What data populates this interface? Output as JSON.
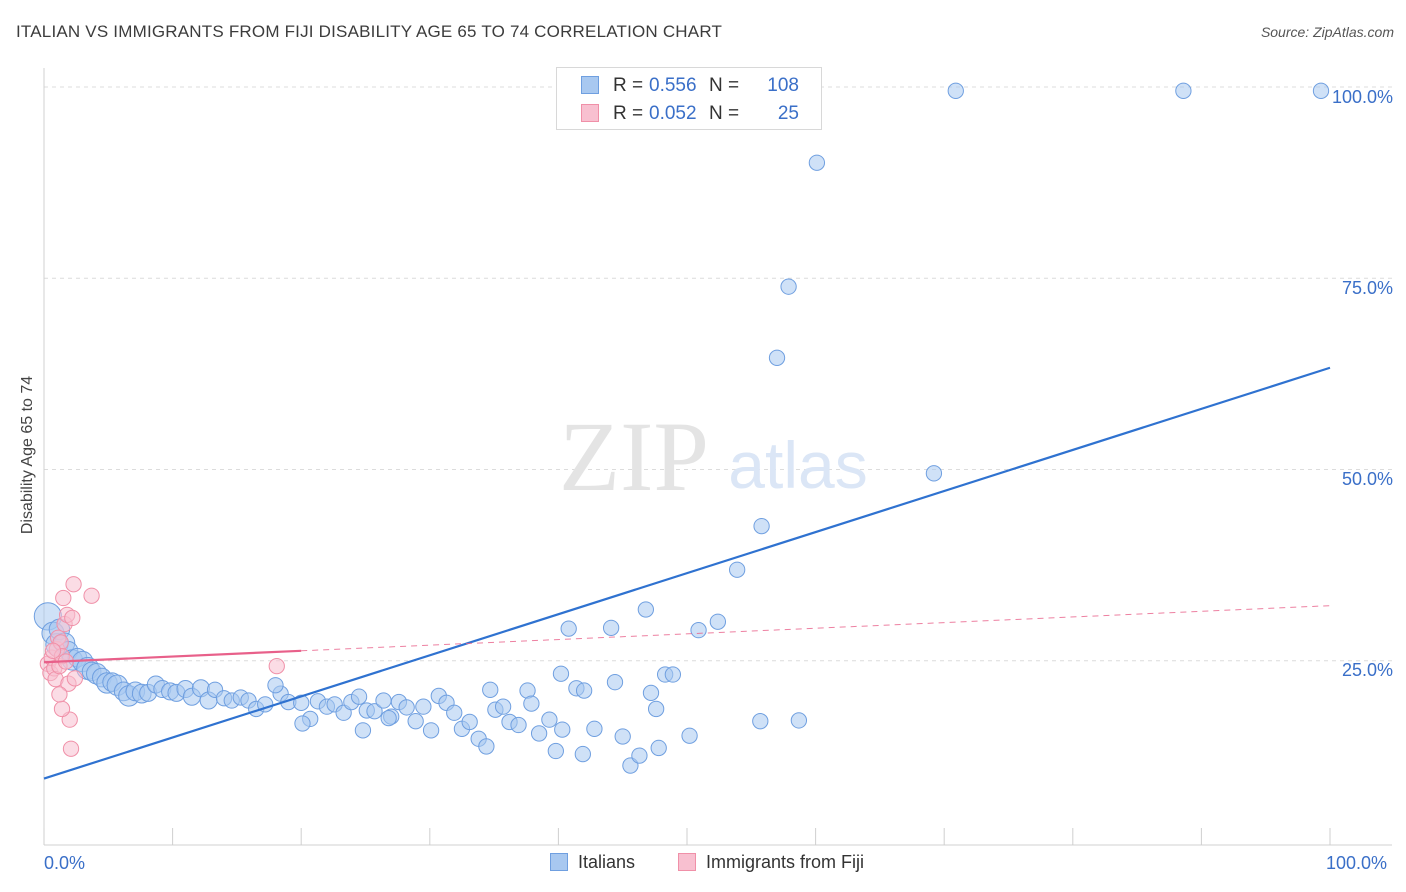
{
  "title": "ITALIAN VS IMMIGRANTS FROM FIJI DISABILITY AGE 65 TO 74 CORRELATION CHART",
  "source": "Source: ZipAtlas.com",
  "watermark": {
    "zip": "ZIP",
    "atlas": "atlas"
  },
  "legend_top": {
    "rows": [
      {
        "r_label": "R =",
        "r_value": "0.556",
        "n_label": "N =",
        "n_value": "108",
        "color": "#a8c8f0",
        "stroke": "#6f9fe0"
      },
      {
        "r_label": "R =",
        "r_value": "0.052",
        "n_label": "N =",
        "n_value": "25",
        "color": "#f8c0d0",
        "stroke": "#f090a8"
      }
    ]
  },
  "legend_bottom": [
    {
      "label": "Italians",
      "color": "#a8c8f0",
      "stroke": "#6f9fe0"
    },
    {
      "label": "Immigrants from Fiji",
      "color": "#f8c0d0",
      "stroke": "#f090a8"
    }
  ],
  "axis_labels": {
    "x_min": "0.0%",
    "x_max": "100.0%",
    "y_ticks": [
      "100.0%",
      "75.0%",
      "50.0%",
      "25.0%"
    ]
  },
  "chart_data": {
    "type": "scatter",
    "title": "ITALIAN VS IMMIGRANTS FROM FIJI DISABILITY AGE 65 TO 74 CORRELATION CHART",
    "xlabel": "",
    "ylabel": "Disability Age 65 to 74",
    "xlim": [
      0,
      100
    ],
    "ylim": [
      0,
      100
    ],
    "y_gridlines": [
      25,
      50,
      75,
      100
    ],
    "grid": true,
    "legend_position": "top-center",
    "series": [
      {
        "name": "Italians",
        "color": "#6f9fe0",
        "fill": "#a8c8f0",
        "r": 0.556,
        "n": 108,
        "trend": {
          "x": [
            0,
            100
          ],
          "y": [
            9.6,
            63.3
          ],
          "style": "solid",
          "color": "#2f72d0"
        },
        "points": [
          [
            0.3,
            30.8,
            16
          ],
          [
            0.7,
            28.6,
            13
          ],
          [
            1.0,
            27.1,
            13
          ],
          [
            1.2,
            29.1,
            12
          ],
          [
            1.6,
            27.3,
            12
          ],
          [
            1.9,
            26.3,
            11
          ],
          [
            2.2,
            25.1,
            12
          ],
          [
            2.6,
            25.4,
            11
          ],
          [
            3.0,
            24.9,
            12
          ],
          [
            3.4,
            24.0,
            13
          ],
          [
            3.7,
            23.6,
            11
          ],
          [
            4.1,
            23.3,
            12
          ],
          [
            4.5,
            22.8,
            11
          ],
          [
            4.9,
            22.1,
            12
          ],
          [
            5.3,
            22.2,
            11
          ],
          [
            5.7,
            21.8,
            12
          ],
          [
            6.2,
            21.0,
            11
          ],
          [
            6.6,
            20.4,
            12
          ],
          [
            7.1,
            21.0,
            11
          ],
          [
            7.6,
            20.7,
            11
          ],
          [
            8.1,
            20.8,
            10
          ],
          [
            8.7,
            21.9,
            10
          ],
          [
            9.2,
            21.3,
            10
          ],
          [
            9.8,
            21.0,
            10
          ],
          [
            10.3,
            20.8,
            10
          ],
          [
            11.0,
            21.3,
            10
          ],
          [
            11.5,
            20.3,
            10
          ],
          [
            12.2,
            21.4,
            10
          ],
          [
            12.8,
            19.8,
            10
          ],
          [
            13.3,
            21.2,
            9
          ],
          [
            14.0,
            20.1,
            9
          ],
          [
            14.6,
            19.8,
            9
          ],
          [
            15.3,
            20.2,
            9
          ],
          [
            15.9,
            19.8,
            9
          ],
          [
            16.5,
            18.7,
            9
          ],
          [
            17.2,
            19.3,
            9
          ],
          [
            18.4,
            20.7,
            9
          ],
          [
            18.0,
            21.8,
            9
          ],
          [
            19.0,
            19.6,
            9
          ],
          [
            20.0,
            19.5,
            9
          ],
          [
            20.7,
            17.4,
            9
          ],
          [
            21.3,
            19.7,
            9
          ],
          [
            22.0,
            19.0,
            9
          ],
          [
            22.6,
            19.3,
            9
          ],
          [
            23.3,
            18.2,
            9
          ],
          [
            23.9,
            19.6,
            9
          ],
          [
            24.5,
            20.3,
            9
          ],
          [
            25.1,
            18.5,
            9
          ],
          [
            25.7,
            18.4,
            9
          ],
          [
            26.4,
            19.8,
            9
          ],
          [
            27.0,
            17.7,
            9
          ],
          [
            27.6,
            19.6,
            9
          ],
          [
            28.2,
            18.9,
            9
          ],
          [
            28.9,
            17.1,
            9
          ],
          [
            29.5,
            19.0,
            9
          ],
          [
            30.1,
            15.9,
            9
          ],
          [
            30.7,
            20.4,
            9
          ],
          [
            31.3,
            19.5,
            9
          ],
          [
            31.9,
            18.2,
            9
          ],
          [
            32.5,
            16.1,
            9
          ],
          [
            33.1,
            17.0,
            9
          ],
          [
            33.8,
            14.8,
            9
          ],
          [
            34.4,
            13.8,
            9
          ],
          [
            34.7,
            21.2,
            9
          ],
          [
            35.1,
            18.6,
            9
          ],
          [
            35.7,
            19.0,
            9
          ],
          [
            36.2,
            17.0,
            9
          ],
          [
            36.9,
            16.6,
            9
          ],
          [
            37.6,
            21.1,
            9
          ],
          [
            37.9,
            19.4,
            9
          ],
          [
            38.5,
            15.5,
            9
          ],
          [
            39.3,
            17.3,
            9
          ],
          [
            39.8,
            13.2,
            9
          ],
          [
            40.3,
            16.0,
            9
          ],
          [
            41.4,
            21.4,
            9
          ],
          [
            41.9,
            12.8,
            9
          ],
          [
            42.8,
            16.1,
            9
          ],
          [
            44.4,
            22.2,
            9
          ],
          [
            45.0,
            15.1,
            9
          ],
          [
            45.6,
            11.3,
            9
          ],
          [
            46.3,
            12.6,
            9
          ],
          [
            47.2,
            20.8,
            9
          ],
          [
            47.6,
            18.7,
            9
          ],
          [
            48.3,
            23.2,
            9
          ],
          [
            48.9,
            23.2,
            9
          ],
          [
            42.0,
            21.1,
            9
          ],
          [
            40.2,
            23.3,
            9
          ],
          [
            44.1,
            29.3,
            9
          ],
          [
            40.8,
            29.2,
            9
          ],
          [
            50.9,
            29.0,
            9
          ],
          [
            52.4,
            30.1,
            9
          ],
          [
            53.9,
            36.9,
            9
          ],
          [
            55.8,
            42.6,
            9
          ],
          [
            57.0,
            64.6,
            9
          ],
          [
            57.9,
            73.9,
            9
          ],
          [
            60.1,
            90.1,
            9
          ],
          [
            55.7,
            17.1,
            9
          ],
          [
            58.7,
            17.2,
            9
          ],
          [
            69.2,
            49.5,
            9
          ],
          [
            70.9,
            99.5,
            9
          ],
          [
            88.6,
            99.5,
            9
          ],
          [
            99.3,
            99.5,
            9
          ],
          [
            46.8,
            31.7,
            9
          ],
          [
            47.8,
            13.6,
            9
          ],
          [
            24.8,
            15.9,
            9
          ],
          [
            50.2,
            15.2,
            9
          ],
          [
            20.1,
            16.8,
            9
          ],
          [
            26.8,
            17.5,
            9
          ]
        ]
      },
      {
        "name": "Immigrants from Fiji",
        "color": "#f090a8",
        "fill": "#f8c0d0",
        "r": 0.052,
        "n": 25,
        "trend": {
          "x": [
            0,
            20
          ],
          "y": [
            24.8,
            26.3
          ],
          "style": "solid",
          "color": "#e8608a"
        },
        "trend_extension": {
          "x": [
            20,
            100
          ],
          "y": [
            26.3,
            32.2
          ],
          "style": "dashed",
          "color": "#e8608a"
        },
        "points": [
          [
            0.3,
            24.6,
            9
          ],
          [
            0.5,
            23.4,
            9
          ],
          [
            0.6,
            25.4,
            9
          ],
          [
            0.8,
            24.0,
            9
          ],
          [
            0.9,
            22.6,
            9
          ],
          [
            1.0,
            26.5,
            9
          ],
          [
            1.1,
            28.0,
            9
          ],
          [
            1.2,
            24.3,
            9
          ],
          [
            1.3,
            27.4,
            9
          ],
          [
            1.4,
            25.6,
            9
          ],
          [
            1.5,
            33.2,
            9
          ],
          [
            1.6,
            29.8,
            9
          ],
          [
            1.7,
            24.9,
            9
          ],
          [
            1.8,
            31.0,
            9
          ],
          [
            1.9,
            22.0,
            9
          ],
          [
            2.0,
            17.3,
            9
          ],
          [
            2.1,
            13.5,
            9
          ],
          [
            2.2,
            30.6,
            9
          ],
          [
            2.3,
            35.0,
            9
          ],
          [
            2.4,
            22.7,
            9
          ],
          [
            1.4,
            18.7,
            9
          ],
          [
            3.7,
            33.5,
            9
          ],
          [
            18.1,
            24.3,
            9
          ],
          [
            1.2,
            20.6,
            9
          ],
          [
            0.7,
            26.3,
            9
          ]
        ]
      }
    ]
  }
}
